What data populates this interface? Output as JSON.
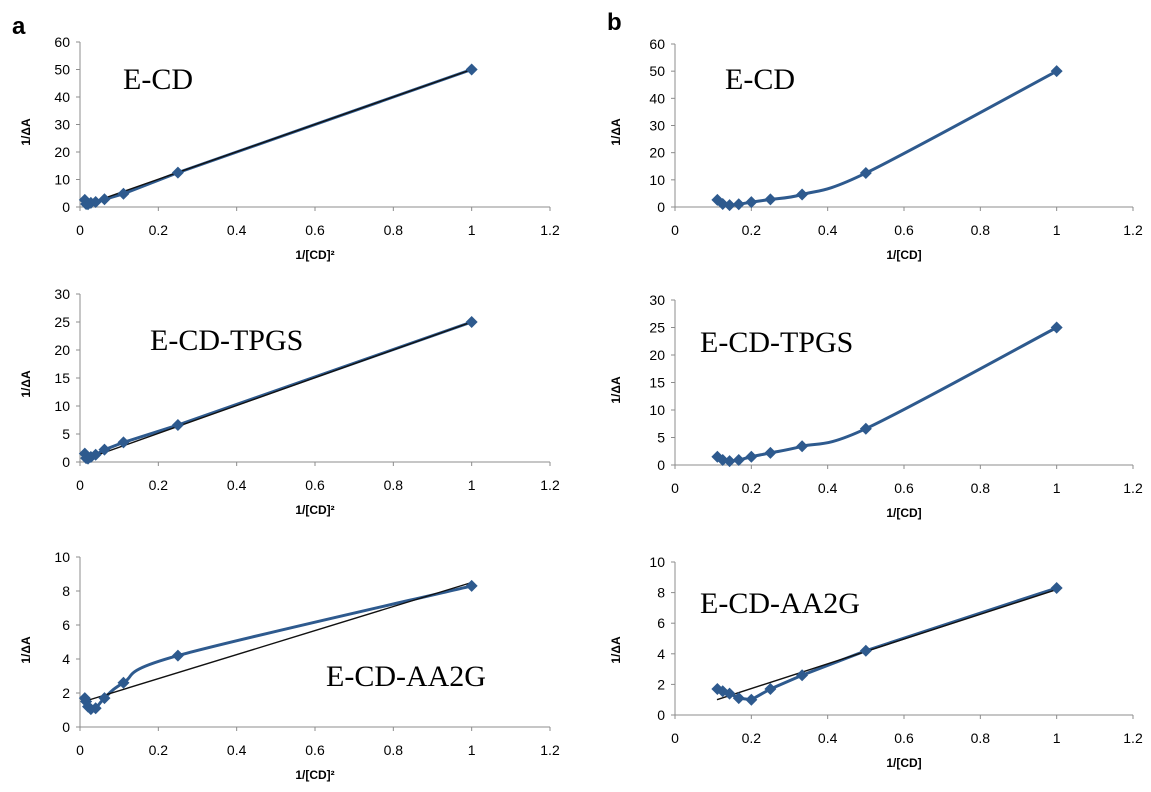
{
  "panel_letters": [
    "a",
    "b"
  ],
  "colors": {
    "series": "#2e5a8e",
    "trend": "#111111",
    "axis": "#8c8c8c"
  },
  "chart_data": [
    {
      "type": "scatter",
      "panel": "a",
      "title": "E-CD",
      "xlabel": "1/[CD]²",
      "ylabel": "1/ΔA",
      "xlim": [
        0,
        1.2
      ],
      "ylim": [
        0,
        60
      ],
      "xticks": [
        "0",
        "0.2",
        "0.4",
        "0.6",
        "0.8",
        "1",
        "1.2"
      ],
      "yticks": [
        "0",
        "10",
        "20",
        "30",
        "40",
        "50",
        "60"
      ],
      "grid": false,
      "line": "straight",
      "trendline": [
        [
          0.01,
          0.6
        ],
        [
          1,
          50
        ]
      ],
      "points": [
        [
          0.0123,
          2.6
        ],
        [
          0.0156,
          1.1
        ],
        [
          0.0204,
          1.0
        ],
        [
          0.0278,
          1.5
        ],
        [
          0.04,
          1.8
        ],
        [
          0.0625,
          2.8
        ],
        [
          0.111,
          4.8
        ],
        [
          0.25,
          12.5
        ],
        [
          1,
          50
        ]
      ]
    },
    {
      "type": "scatter",
      "panel": "b",
      "title": "E-CD",
      "xlabel": "1/[CD]",
      "ylabel": "1/ΔA",
      "xlim": [
        0,
        1.2
      ],
      "ylim": [
        0,
        60
      ],
      "xticks": [
        "0",
        "0.2",
        "0.4",
        "0.6",
        "0.8",
        "1",
        "1.2"
      ],
      "yticks": [
        "0",
        "10",
        "20",
        "30",
        "40",
        "50",
        "60"
      ],
      "grid": false,
      "line": "smooth",
      "points": [
        [
          0.111,
          2.6
        ],
        [
          0.125,
          1.1
        ],
        [
          0.143,
          0.7
        ],
        [
          0.167,
          1.0
        ],
        [
          0.2,
          1.8
        ],
        [
          0.25,
          2.8
        ],
        [
          0.333,
          4.6
        ],
        [
          0.5,
          12.5
        ],
        [
          1,
          50
        ]
      ]
    },
    {
      "type": "scatter",
      "panel": "a",
      "title": "E-CD-TPGS",
      "xlabel": "1/[CD]²",
      "ylabel": "1/ΔA",
      "xlim": [
        0,
        1.2
      ],
      "ylim": [
        0,
        30
      ],
      "xticks": [
        "0",
        "0.2",
        "0.4",
        "0.6",
        "0.8",
        "1",
        "1.2"
      ],
      "yticks": [
        "0",
        "5",
        "10",
        "15",
        "20",
        "25",
        "30"
      ],
      "grid": false,
      "line": "straight",
      "trendline": [
        [
          0.01,
          0.4
        ],
        [
          1,
          25
        ]
      ],
      "points": [
        [
          0.0123,
          1.5
        ],
        [
          0.0156,
          0.7
        ],
        [
          0.0204,
          0.6
        ],
        [
          0.0278,
          0.9
        ],
        [
          0.04,
          1.3
        ],
        [
          0.0625,
          2.2
        ],
        [
          0.111,
          3.5
        ],
        [
          0.25,
          6.6
        ],
        [
          1,
          25
        ]
      ]
    },
    {
      "type": "scatter",
      "panel": "b",
      "title": "E-CD-TPGS",
      "xlabel": "1/[CD]",
      "ylabel": "1/ΔA",
      "xlim": [
        0,
        1.2
      ],
      "ylim": [
        0,
        30
      ],
      "xticks": [
        "0",
        "0.2",
        "0.4",
        "0.6",
        "0.8",
        "1",
        "1.2"
      ],
      "yticks": [
        "0",
        "5",
        "10",
        "15",
        "20",
        "25",
        "30"
      ],
      "grid": false,
      "line": "smooth",
      "points": [
        [
          0.111,
          1.5
        ],
        [
          0.125,
          0.9
        ],
        [
          0.143,
          0.7
        ],
        [
          0.167,
          0.9
        ],
        [
          0.2,
          1.5
        ],
        [
          0.25,
          2.2
        ],
        [
          0.333,
          3.4
        ],
        [
          0.5,
          6.6
        ],
        [
          1,
          25
        ]
      ]
    },
    {
      "type": "scatter",
      "panel": "a",
      "title": "E-CD-AA2G",
      "xlabel": "1/[CD]²",
      "ylabel": "1/ΔA",
      "xlim": [
        0,
        1.2
      ],
      "ylim": [
        0,
        10
      ],
      "xticks": [
        "0",
        "0.2",
        "0.4",
        "0.6",
        "0.8",
        "1",
        "1.2"
      ],
      "yticks": [
        "0",
        "2",
        "4",
        "6",
        "8",
        "10"
      ],
      "grid": false,
      "line": "smooth",
      "trendline": [
        [
          0.01,
          1.5
        ],
        [
          1,
          8.5
        ]
      ],
      "points": [
        [
          0.0123,
          1.7
        ],
        [
          0.0156,
          1.5
        ],
        [
          0.0204,
          1.2
        ],
        [
          0.0278,
          1.05
        ],
        [
          0.04,
          1.1
        ],
        [
          0.0625,
          1.7
        ],
        [
          0.111,
          2.6
        ],
        [
          0.25,
          4.2
        ],
        [
          1,
          8.3
        ]
      ]
    },
    {
      "type": "scatter",
      "panel": "b",
      "title": "E-CD-AA2G",
      "xlabel": "1/[CD]",
      "ylabel": "1/ΔA",
      "xlim": [
        0,
        1.2
      ],
      "ylim": [
        0,
        10
      ],
      "xticks": [
        "0",
        "0.2",
        "0.4",
        "0.6",
        "0.8",
        "1",
        "1.2"
      ],
      "yticks": [
        "0",
        "2",
        "4",
        "6",
        "8",
        "10"
      ],
      "grid": false,
      "line": "straight",
      "trendline": [
        [
          0.11,
          1.0
        ],
        [
          1,
          8.2
        ]
      ],
      "points": [
        [
          0.111,
          1.7
        ],
        [
          0.125,
          1.55
        ],
        [
          0.143,
          1.4
        ],
        [
          0.167,
          1.1
        ],
        [
          0.2,
          1.0
        ],
        [
          0.25,
          1.7
        ],
        [
          0.333,
          2.6
        ],
        [
          0.5,
          4.2
        ],
        [
          1,
          8.3
        ]
      ]
    }
  ]
}
